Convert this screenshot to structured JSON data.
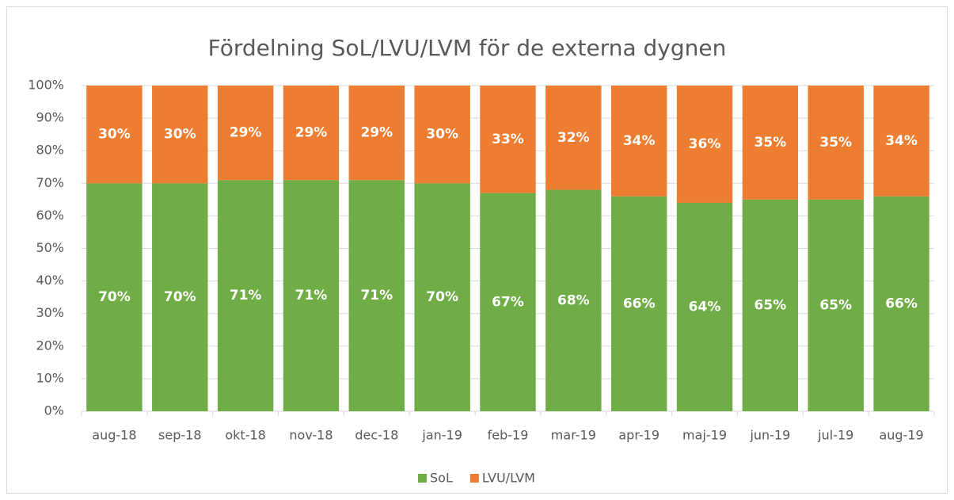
{
  "chart_data": {
    "type": "stacked-bar",
    "title": "Fördelning SoL/LVU/LVM för de externa dygnen",
    "categories": [
      "aug-18",
      "sep-18",
      "okt-18",
      "nov-18",
      "dec-18",
      "jan-19",
      "feb-19",
      "mar-19",
      "apr-19",
      "maj-19",
      "jun-19",
      "jul-19",
      "aug-19"
    ],
    "series": [
      {
        "name": "SoL",
        "color": "#70ad47",
        "values": [
          70,
          70,
          71,
          71,
          71,
          70,
          67,
          68,
          66,
          64,
          65,
          65,
          66
        ],
        "value_labels": [
          "70%",
          "70%",
          "71%",
          "71%",
          "71%",
          "70%",
          "67%",
          "68%",
          "66%",
          "64%",
          "65%",
          "65%",
          "66%"
        ]
      },
      {
        "name": "LVU/LVM",
        "color": "#ed7d31",
        "values": [
          30,
          30,
          29,
          29,
          29,
          30,
          33,
          32,
          34,
          36,
          35,
          35,
          34
        ],
        "value_labels": [
          "30%",
          "30%",
          "29%",
          "29%",
          "29%",
          "30%",
          "33%",
          "32%",
          "34%",
          "36%",
          "35%",
          "35%",
          "34%"
        ]
      }
    ],
    "ylim": [
      0,
      100
    ],
    "yticks": [
      {
        "value": 0,
        "label": "0%"
      },
      {
        "value": 10,
        "label": "10%"
      },
      {
        "value": 20,
        "label": "20%"
      },
      {
        "value": 30,
        "label": "30%"
      },
      {
        "value": 40,
        "label": "40%"
      },
      {
        "value": 50,
        "label": "50%"
      },
      {
        "value": 60,
        "label": "60%"
      },
      {
        "value": 70,
        "label": "70%"
      },
      {
        "value": 80,
        "label": "80%"
      },
      {
        "value": 90,
        "label": "90%"
      },
      {
        "value": 100,
        "label": "100%"
      }
    ],
    "grid": true,
    "legend": "bottom"
  }
}
